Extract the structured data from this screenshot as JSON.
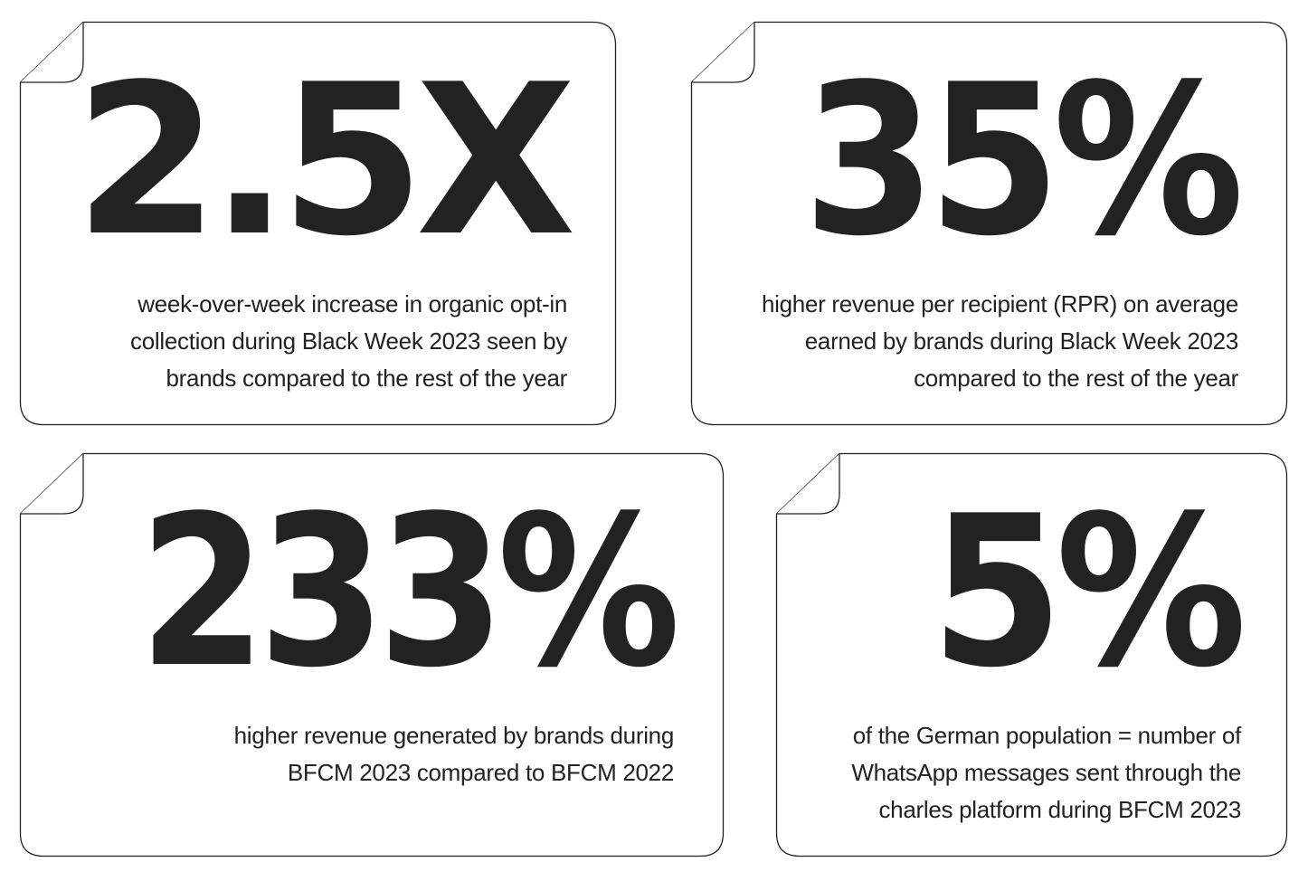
{
  "colors": {
    "ink": "#232223",
    "background": "#ffffff"
  },
  "stats": [
    {
      "value": "2.5X",
      "description": [
        "week-over-week increase in organic opt-in",
        "collection during Black Week 2023 seen by",
        "brands compared to the rest of the year"
      ]
    },
    {
      "value": "35%",
      "description": [
        "higher revenue per recipient (RPR) on average",
        "earned by brands during Black Week 2023",
        "compared to the rest of the year"
      ]
    },
    {
      "value": "233%",
      "description": [
        "higher revenue generated by brands during",
        "BFCM 2023 compared to BFCM 2022"
      ]
    },
    {
      "value": "5%",
      "description": [
        "of the German population = number of",
        "WhatsApp messages sent through the",
        "charles platform during BFCM 2023"
      ]
    }
  ]
}
